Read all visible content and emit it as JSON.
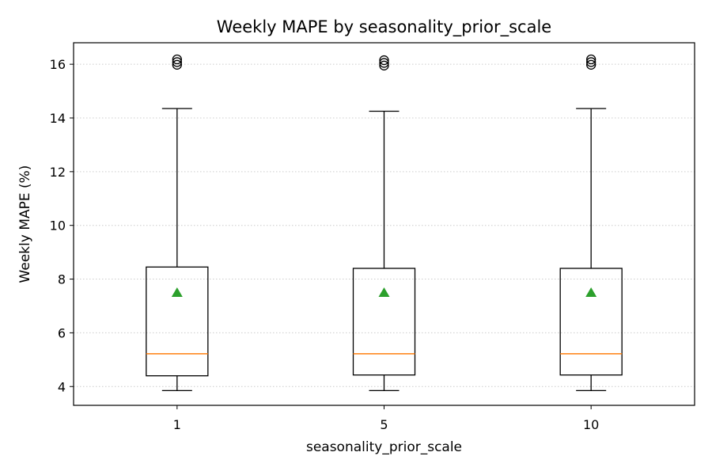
{
  "chart_data": {
    "type": "box",
    "title": "Weekly MAPE by seasonality_prior_scale",
    "xlabel": "seasonality_prior_scale",
    "ylabel": "Weekly MAPE (%)",
    "ylim": [
      3.3,
      16.8
    ],
    "yticks": [
      4,
      6,
      8,
      10,
      12,
      14,
      16
    ],
    "grid": {
      "y": true,
      "x": false,
      "style": "dotted"
    },
    "colors": {
      "box": "#000000",
      "median": "#ff7f0e",
      "mean": "#2ca02c",
      "grid": "#cccccc"
    },
    "categories": [
      "1",
      "5",
      "10"
    ],
    "boxes": [
      {
        "category": "1",
        "whisker_low": 3.85,
        "q1": 4.4,
        "median": 5.22,
        "q3": 8.45,
        "whisker_high": 14.35,
        "mean": 7.5,
        "outliers": [
          15.98,
          16.08,
          16.18
        ]
      },
      {
        "category": "5",
        "whisker_low": 3.85,
        "q1": 4.43,
        "median": 5.22,
        "q3": 8.4,
        "whisker_high": 14.25,
        "mean": 7.5,
        "outliers": [
          15.95,
          16.05,
          16.15
        ]
      },
      {
        "category": "10",
        "whisker_low": 3.85,
        "q1": 4.43,
        "median": 5.22,
        "q3": 8.4,
        "whisker_high": 14.35,
        "mean": 7.5,
        "outliers": [
          15.98,
          16.08,
          16.18
        ]
      }
    ]
  }
}
